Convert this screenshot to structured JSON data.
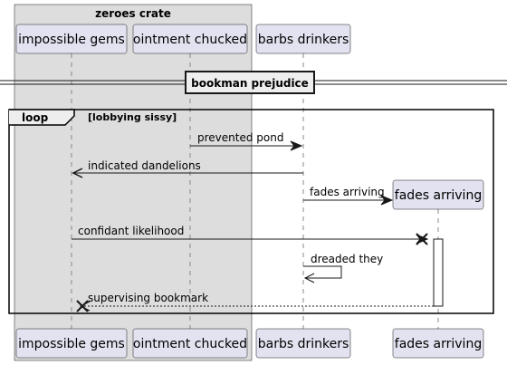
{
  "box": {
    "label": "zeroes crate",
    "color": "#dddddd"
  },
  "participants": [
    {
      "id": "p1",
      "label": "impossible gems"
    },
    {
      "id": "p2",
      "label": "ointment chucked"
    },
    {
      "id": "p3",
      "label": "barbs drinkers"
    },
    {
      "id": "p4",
      "label": "fades arriving"
    }
  ],
  "divider": {
    "label": "bookman prejudice"
  },
  "loop": {
    "keyword": "loop",
    "condition": "[lobbying sissy]"
  },
  "messages": [
    {
      "id": "m1",
      "from": "p2",
      "to": "p3",
      "label": "prevented pond",
      "style": "solid"
    },
    {
      "id": "m2",
      "from": "p3",
      "to": "p1",
      "label": "indicated dandelions",
      "style": "solid"
    },
    {
      "id": "m3",
      "from": "p3",
      "to": "p4",
      "label": "fades arriving",
      "style": "create"
    },
    {
      "id": "m4",
      "from": "p1",
      "to": "p4",
      "label": "confidant likelihood",
      "style": "destroy"
    },
    {
      "id": "m5",
      "from": "p3",
      "to": "p3",
      "label": "dreaded they",
      "style": "self"
    },
    {
      "id": "m6",
      "from": "p4",
      "to": "p1",
      "label": "supervising bookmark",
      "style": "dashed-destroy"
    }
  ],
  "colors": {
    "participant_fill": "#e2e2f0",
    "participant_stroke": "#181818",
    "lifeline": "#888888",
    "line": "#181818"
  }
}
